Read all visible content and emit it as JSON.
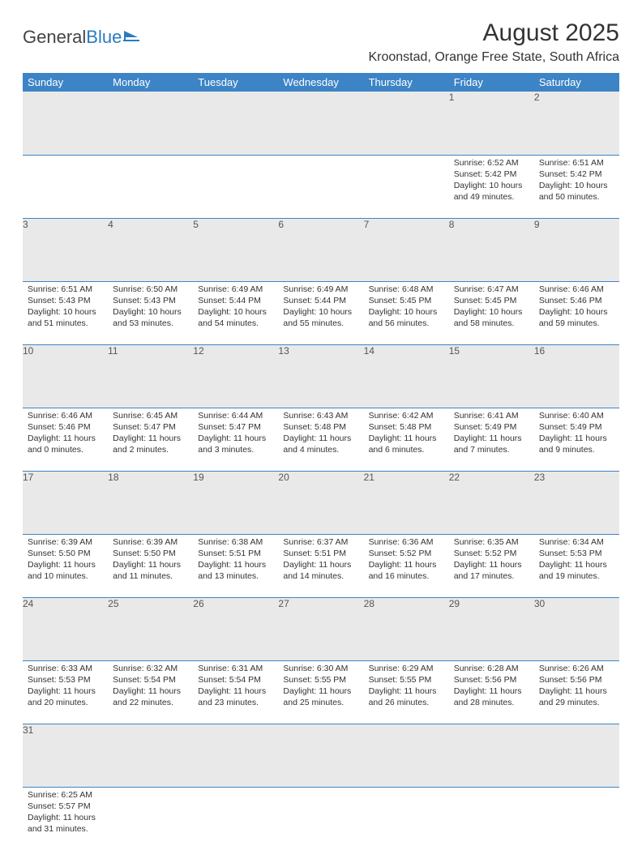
{
  "logo": {
    "text_general": "General",
    "text_blue": "Blue",
    "color_general": "#444444",
    "color_blue": "#2b7bbf"
  },
  "title": "August 2025",
  "location": "Kroonstad, Orange Free State, South Africa",
  "header_bg": "#3d84c6",
  "header_fg": "#ffffff",
  "daynum_bg": "#e9e9e9",
  "border_color": "#3d84c6",
  "day_headers": [
    "Sunday",
    "Monday",
    "Tuesday",
    "Wednesday",
    "Thursday",
    "Friday",
    "Saturday"
  ],
  "weeks": [
    [
      null,
      null,
      null,
      null,
      null,
      {
        "n": "1",
        "sr": "6:52 AM",
        "ss": "5:42 PM",
        "dl": "10 hours and 49 minutes."
      },
      {
        "n": "2",
        "sr": "6:51 AM",
        "ss": "5:42 PM",
        "dl": "10 hours and 50 minutes."
      }
    ],
    [
      {
        "n": "3",
        "sr": "6:51 AM",
        "ss": "5:43 PM",
        "dl": "10 hours and 51 minutes."
      },
      {
        "n": "4",
        "sr": "6:50 AM",
        "ss": "5:43 PM",
        "dl": "10 hours and 53 minutes."
      },
      {
        "n": "5",
        "sr": "6:49 AM",
        "ss": "5:44 PM",
        "dl": "10 hours and 54 minutes."
      },
      {
        "n": "6",
        "sr": "6:49 AM",
        "ss": "5:44 PM",
        "dl": "10 hours and 55 minutes."
      },
      {
        "n": "7",
        "sr": "6:48 AM",
        "ss": "5:45 PM",
        "dl": "10 hours and 56 minutes."
      },
      {
        "n": "8",
        "sr": "6:47 AM",
        "ss": "5:45 PM",
        "dl": "10 hours and 58 minutes."
      },
      {
        "n": "9",
        "sr": "6:46 AM",
        "ss": "5:46 PM",
        "dl": "10 hours and 59 minutes."
      }
    ],
    [
      {
        "n": "10",
        "sr": "6:46 AM",
        "ss": "5:46 PM",
        "dl": "11 hours and 0 minutes."
      },
      {
        "n": "11",
        "sr": "6:45 AM",
        "ss": "5:47 PM",
        "dl": "11 hours and 2 minutes."
      },
      {
        "n": "12",
        "sr": "6:44 AM",
        "ss": "5:47 PM",
        "dl": "11 hours and 3 minutes."
      },
      {
        "n": "13",
        "sr": "6:43 AM",
        "ss": "5:48 PM",
        "dl": "11 hours and 4 minutes."
      },
      {
        "n": "14",
        "sr": "6:42 AM",
        "ss": "5:48 PM",
        "dl": "11 hours and 6 minutes."
      },
      {
        "n": "15",
        "sr": "6:41 AM",
        "ss": "5:49 PM",
        "dl": "11 hours and 7 minutes."
      },
      {
        "n": "16",
        "sr": "6:40 AM",
        "ss": "5:49 PM",
        "dl": "11 hours and 9 minutes."
      }
    ],
    [
      {
        "n": "17",
        "sr": "6:39 AM",
        "ss": "5:50 PM",
        "dl": "11 hours and 10 minutes."
      },
      {
        "n": "18",
        "sr": "6:39 AM",
        "ss": "5:50 PM",
        "dl": "11 hours and 11 minutes."
      },
      {
        "n": "19",
        "sr": "6:38 AM",
        "ss": "5:51 PM",
        "dl": "11 hours and 13 minutes."
      },
      {
        "n": "20",
        "sr": "6:37 AM",
        "ss": "5:51 PM",
        "dl": "11 hours and 14 minutes."
      },
      {
        "n": "21",
        "sr": "6:36 AM",
        "ss": "5:52 PM",
        "dl": "11 hours and 16 minutes."
      },
      {
        "n": "22",
        "sr": "6:35 AM",
        "ss": "5:52 PM",
        "dl": "11 hours and 17 minutes."
      },
      {
        "n": "23",
        "sr": "6:34 AM",
        "ss": "5:53 PM",
        "dl": "11 hours and 19 minutes."
      }
    ],
    [
      {
        "n": "24",
        "sr": "6:33 AM",
        "ss": "5:53 PM",
        "dl": "11 hours and 20 minutes."
      },
      {
        "n": "25",
        "sr": "6:32 AM",
        "ss": "5:54 PM",
        "dl": "11 hours and 22 minutes."
      },
      {
        "n": "26",
        "sr": "6:31 AM",
        "ss": "5:54 PM",
        "dl": "11 hours and 23 minutes."
      },
      {
        "n": "27",
        "sr": "6:30 AM",
        "ss": "5:55 PM",
        "dl": "11 hours and 25 minutes."
      },
      {
        "n": "28",
        "sr": "6:29 AM",
        "ss": "5:55 PM",
        "dl": "11 hours and 26 minutes."
      },
      {
        "n": "29",
        "sr": "6:28 AM",
        "ss": "5:56 PM",
        "dl": "11 hours and 28 minutes."
      },
      {
        "n": "30",
        "sr": "6:26 AM",
        "ss": "5:56 PM",
        "dl": "11 hours and 29 minutes."
      }
    ],
    [
      {
        "n": "31",
        "sr": "6:25 AM",
        "ss": "5:57 PM",
        "dl": "11 hours and 31 minutes."
      },
      null,
      null,
      null,
      null,
      null,
      null
    ]
  ],
  "labels": {
    "sunrise": "Sunrise:",
    "sunset": "Sunset:",
    "daylight": "Daylight:"
  }
}
